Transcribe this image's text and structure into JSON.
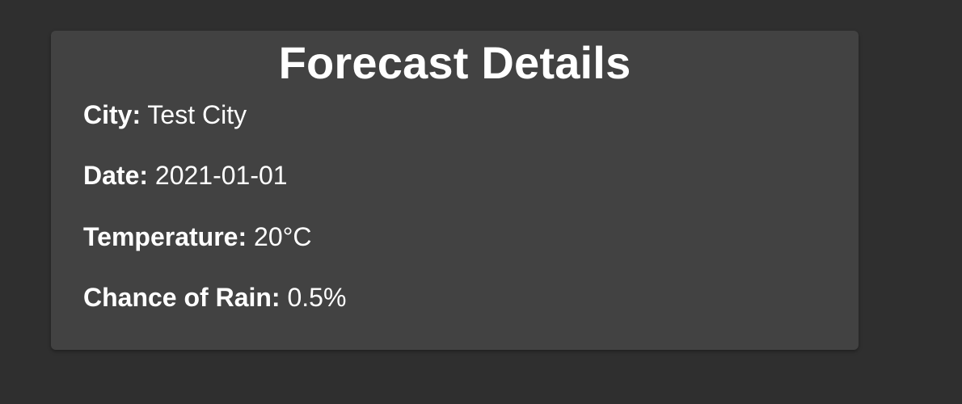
{
  "forecast": {
    "title": "Forecast Details",
    "city": {
      "label": "City:",
      "value": "Test City"
    },
    "date": {
      "label": "Date:",
      "value": "2021-01-01"
    },
    "temperature": {
      "label": "Temperature:",
      "value": "20°C"
    },
    "chance_of_rain": {
      "label": "Chance of Rain:",
      "value": "0.5%"
    }
  }
}
